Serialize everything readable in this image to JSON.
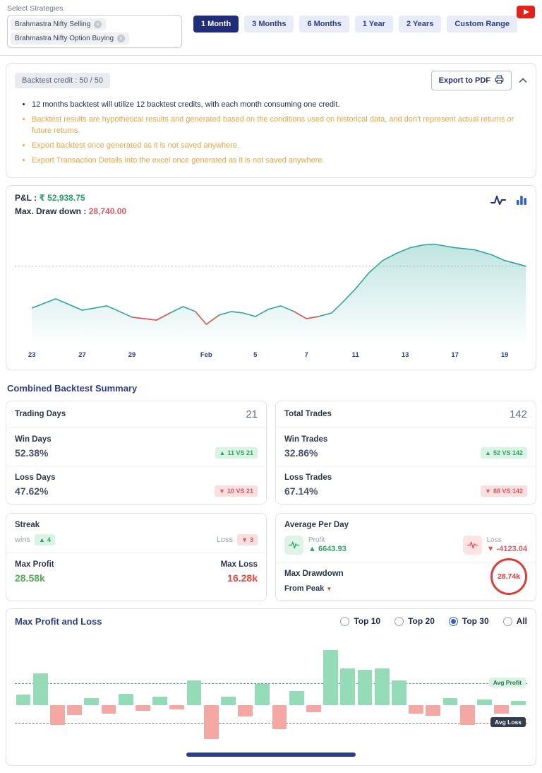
{
  "header": {
    "select_strategies_label": "Select Strategies",
    "strategies": [
      {
        "label": "Brahmastra Nifty Selling"
      },
      {
        "label": "Brahmastra Nifty Option Buying"
      }
    ],
    "ranges": [
      "1 Month",
      "3 Months",
      "6 Months",
      "1 Year",
      "2 Years",
      "Custom Range"
    ],
    "selected_range": "1 Month"
  },
  "credits_panel": {
    "credit_label": "Backtest credit : 50 / 50",
    "export_label": "Export to PDF",
    "notes": [
      "12 months backtest will utilize 12 backtest credits, with each month consuming one credit.",
      "Backtest results are hypothetical results and generated based on the conditions used on historical data, and don't represent actual returns or future returns.",
      "Export backtest once generated as it is not saved anywhere.",
      "Export Transaction Details into the excel once generated as it is not saved anywhere."
    ]
  },
  "pnl": {
    "label": "P&L :",
    "value": "₹ 52,938.75",
    "drawdown_label": "Max. Draw down :",
    "drawdown_value": "28,740.00"
  },
  "summary": {
    "heading": "Combined Backtest Summary",
    "trading_days": {
      "label": "Trading Days",
      "value": "21"
    },
    "win_days": {
      "label": "Win Days",
      "value": "52.38%",
      "badge": "11 VS 21"
    },
    "loss_days": {
      "label": "Loss Days",
      "value": "47.62%",
      "badge": "10 VS 21"
    },
    "total_trades": {
      "label": "Total Trades",
      "value": "142"
    },
    "win_trades": {
      "label": "Win Trades",
      "value": "32.86%",
      "badge": "52 VS 142"
    },
    "loss_trades": {
      "label": "Loss Trades",
      "value": "67.14%",
      "badge": "88 VS 142"
    },
    "streak": {
      "label": "Streak",
      "wins_label": "wins",
      "wins_badge": "4",
      "loss_label": "Loss",
      "loss_badge": "3"
    },
    "max_profit": {
      "label": "Max Profit",
      "value": "28.58k"
    },
    "max_loss": {
      "label": "Max Loss",
      "value": "16.28k"
    },
    "avg_per_day": {
      "label": "Average Per Day",
      "profit_label": "Profit",
      "profit_value": "6643.93",
      "loss_label": "Loss",
      "loss_value": "-4123.04"
    },
    "max_drawdown": {
      "label": "Max Drawdown",
      "from_label": "From Peak",
      "value": "28.74k"
    }
  },
  "max_pl": {
    "heading": "Max Profit and Loss",
    "options": [
      "Top 10",
      "Top 20",
      "Top 30",
      "All"
    ],
    "selected": "Top 30",
    "avg_profit_label": "Avg Profit",
    "avg_loss_label": "Avg Loss"
  },
  "chart_data": [
    {
      "type": "area",
      "title": "Cumulative P&L (1 Month)",
      "final_value": 52938.75,
      "max_drawdown": 28740.0,
      "units": "x = horizontal position (0-752), v = estimated P&L in thousands of ₹",
      "ylim": [
        0,
        89
      ],
      "reference_value": 53.6,
      "x_ticks": [
        {
          "label": "23",
          "x": 25
        },
        {
          "label": "27",
          "x": 99
        },
        {
          "label": "29",
          "x": 172
        },
        {
          "label": "Feb",
          "x": 281
        },
        {
          "label": "5",
          "x": 353
        },
        {
          "label": "7",
          "x": 428
        },
        {
          "label": "11",
          "x": 500
        },
        {
          "label": "13",
          "x": 573
        },
        {
          "label": "17",
          "x": 646
        },
        {
          "label": "19",
          "x": 719
        }
      ],
      "points": [
        [
          25,
          15.9
        ],
        [
          60,
          24.2
        ],
        [
          99,
          14.0
        ],
        [
          135,
          17.9
        ],
        [
          172,
          7.7
        ],
        [
          208,
          5.1
        ],
        [
          228,
          11.5
        ],
        [
          247,
          17.2
        ],
        [
          265,
          12.8
        ],
        [
          281,
          1.3
        ],
        [
          300,
          9.6
        ],
        [
          318,
          12.8
        ],
        [
          335,
          11.5
        ],
        [
          353,
          8.3
        ],
        [
          372,
          14.7
        ],
        [
          390,
          17.9
        ],
        [
          410,
          12.8
        ],
        [
          428,
          6.4
        ],
        [
          446,
          8.3
        ],
        [
          465,
          11.5
        ],
        [
          483,
          22.3
        ],
        [
          500,
          33.2
        ],
        [
          520,
          47.8
        ],
        [
          540,
          58.7
        ],
        [
          560,
          65.1
        ],
        [
          580,
          70.2
        ],
        [
          600,
          72.7
        ],
        [
          615,
          73.4
        ],
        [
          646,
          70.2
        ],
        [
          675,
          68.3
        ],
        [
          700,
          63.8
        ],
        [
          719,
          58.7
        ],
        [
          750,
          53.6
        ]
      ],
      "red_ranges": [
        [
          4,
          6
        ],
        [
          8,
          10
        ],
        [
          16,
          18
        ]
      ],
      "line_color": "#2aa79b",
      "loss_color": "#ef5350"
    },
    {
      "type": "bar",
      "title": "Max Profit and Loss (Top 30 trades)",
      "units": "relative visual units (no axis labels shown)",
      "values": [
        15,
        45,
        -28,
        -14,
        10,
        -12,
        16,
        -8,
        12,
        -6,
        35,
        -48,
        12,
        -16,
        30,
        -34,
        20,
        -10,
        78,
        52,
        50,
        52,
        35,
        -12,
        -15,
        10,
        -28,
        8,
        -12,
        6
      ],
      "avg_profit_line": 30,
      "avg_loss_line": -26,
      "profit_color": "#93dcb7",
      "loss_color": "#f5a8a3",
      "legend_position": "right"
    }
  ]
}
